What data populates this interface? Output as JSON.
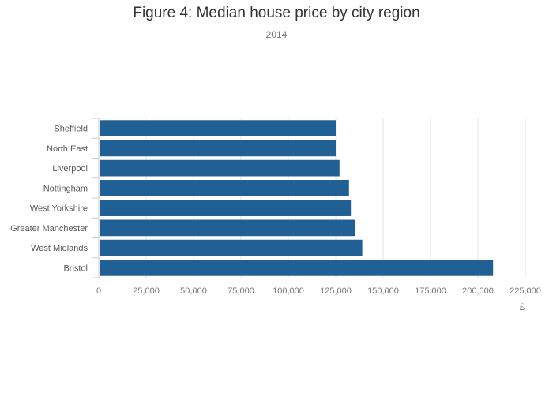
{
  "chart_data": {
    "type": "bar",
    "orientation": "horizontal",
    "title": "Figure 4: Median house price by city region",
    "subtitle": "2014",
    "xlabel": "£",
    "ylabel": "",
    "categories": [
      "Sheffield",
      "North East",
      "Liverpool",
      "Nottingham",
      "West Yorkshire",
      "Greater Manchester",
      "West Midlands",
      "Bristol"
    ],
    "values": [
      125000,
      125000,
      127000,
      132000,
      133000,
      135000,
      139000,
      208000
    ],
    "xlim": [
      0,
      225000
    ],
    "xticks": [
      0,
      25000,
      50000,
      75000,
      100000,
      125000,
      150000,
      175000,
      200000,
      225000
    ],
    "xtick_labels": [
      "0",
      "25,000",
      "50,000",
      "75,000",
      "100,000",
      "125,000",
      "150,000",
      "175,000",
      "200,000",
      "225,000"
    ],
    "grid": "vertical",
    "legend": "none",
    "colors": {
      "bar": "#206095",
      "grid": "#e5e5e5",
      "axis": "#cccccc",
      "tick_text": "#767676",
      "category_text": "#595959"
    }
  }
}
